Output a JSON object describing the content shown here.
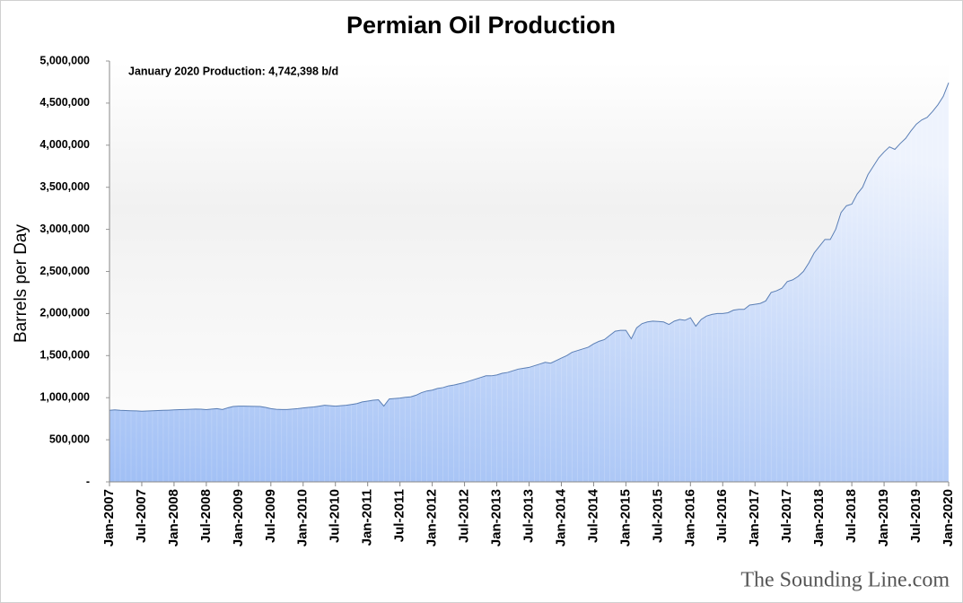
{
  "chart_data": {
    "type": "area",
    "title": "Permian Oil Production",
    "y_label": "Barrels per Day",
    "annotation": "January 2020 Production: 4,742,398  b/d",
    "watermark": "The Sounding Line.com",
    "color": "#a4c2f4",
    "line_color": "#5b7fb5",
    "categories": [
      "Jan-2007",
      null,
      null,
      null,
      null,
      null,
      "Jul-2007",
      null,
      null,
      null,
      null,
      null,
      "Jan-2008",
      null,
      null,
      null,
      null,
      null,
      "Jul-2008",
      null,
      null,
      null,
      null,
      null,
      "Jan-2009",
      null,
      null,
      null,
      null,
      null,
      "Jul-2009",
      null,
      null,
      null,
      null,
      null,
      "Jan-2010",
      null,
      null,
      null,
      null,
      null,
      "Jul-2010",
      null,
      null,
      null,
      null,
      null,
      "Jan-2011",
      null,
      null,
      null,
      null,
      null,
      "Jul-2011",
      null,
      null,
      null,
      null,
      null,
      "Jan-2012",
      null,
      null,
      null,
      null,
      null,
      "Jul-2012",
      null,
      null,
      null,
      null,
      null,
      "Jan-2013",
      null,
      null,
      null,
      null,
      null,
      "Jul-2013",
      null,
      null,
      null,
      null,
      null,
      "Jan-2014",
      null,
      null,
      null,
      null,
      null,
      "Jul-2014",
      null,
      null,
      null,
      null,
      null,
      "Jan-2015",
      null,
      null,
      null,
      null,
      null,
      "Jul-2015",
      null,
      null,
      null,
      null,
      null,
      "Jan-2016",
      null,
      null,
      null,
      null,
      null,
      "Jul-2016",
      null,
      null,
      null,
      null,
      null,
      "Jan-2017",
      null,
      null,
      null,
      null,
      null,
      "Jul-2017",
      null,
      null,
      null,
      null,
      null,
      "Jan-2018",
      null,
      null,
      null,
      null,
      null,
      "Jul-2018",
      null,
      null,
      null,
      null,
      null,
      "Jan-2019",
      null,
      null,
      null,
      null,
      null,
      "Jul-2019",
      null,
      null,
      null,
      null,
      null,
      "Jan-2020"
    ],
    "values": [
      850000,
      855000,
      850000,
      848000,
      845000,
      843000,
      840000,
      842000,
      845000,
      848000,
      850000,
      852000,
      855000,
      858000,
      860000,
      862000,
      865000,
      863000,
      858000,
      865000,
      870000,
      860000,
      880000,
      895000,
      900000,
      900000,
      898000,
      897000,
      895000,
      885000,
      870000,
      862000,
      860000,
      860000,
      865000,
      870000,
      878000,
      885000,
      890000,
      900000,
      910000,
      905000,
      900000,
      905000,
      910000,
      920000,
      930000,
      950000,
      960000,
      970000,
      975000,
      900000,
      985000,
      990000,
      995000,
      1005000,
      1010000,
      1030000,
      1060000,
      1080000,
      1090000,
      1110000,
      1120000,
      1140000,
      1150000,
      1165000,
      1180000,
      1200000,
      1220000,
      1240000,
      1260000,
      1260000,
      1270000,
      1290000,
      1300000,
      1320000,
      1340000,
      1350000,
      1360000,
      1380000,
      1400000,
      1420000,
      1410000,
      1440000,
      1470000,
      1500000,
      1540000,
      1560000,
      1580000,
      1600000,
      1640000,
      1670000,
      1690000,
      1740000,
      1790000,
      1800000,
      1800000,
      1700000,
      1830000,
      1880000,
      1900000,
      1910000,
      1905000,
      1900000,
      1870000,
      1910000,
      1930000,
      1920000,
      1950000,
      1850000,
      1930000,
      1970000,
      1990000,
      2000000,
      2000000,
      2010000,
      2040000,
      2050000,
      2050000,
      2100000,
      2110000,
      2120000,
      2150000,
      2250000,
      2270000,
      2300000,
      2380000,
      2400000,
      2440000,
      2500000,
      2600000,
      2720000,
      2800000,
      2880000,
      2880000,
      3000000,
      3200000,
      3280000,
      3300000,
      3420000,
      3500000,
      3650000,
      3750000,
      3850000,
      3920000,
      3980000,
      3950000,
      4020000,
      4080000,
      4170000,
      4250000,
      4300000,
      4330000,
      4400000,
      4480000,
      4580000,
      4742398
    ],
    "ylim": [
      0,
      5000000
    ],
    "yticks": [
      {
        "value": 0,
        "label": "-"
      },
      {
        "value": 500000,
        "label": "500,000"
      },
      {
        "value": 1000000,
        "label": "1,000,000"
      },
      {
        "value": 1500000,
        "label": "1,500,000"
      },
      {
        "value": 2000000,
        "label": "2,000,000"
      },
      {
        "value": 2500000,
        "label": "2,500,000"
      },
      {
        "value": 3000000,
        "label": "3,000,000"
      },
      {
        "value": 3500000,
        "label": "3,500,000"
      },
      {
        "value": 4000000,
        "label": "4,000,000"
      },
      {
        "value": 4500000,
        "label": "4,500,000"
      },
      {
        "value": 5000000,
        "label": "5,000,000"
      }
    ]
  }
}
